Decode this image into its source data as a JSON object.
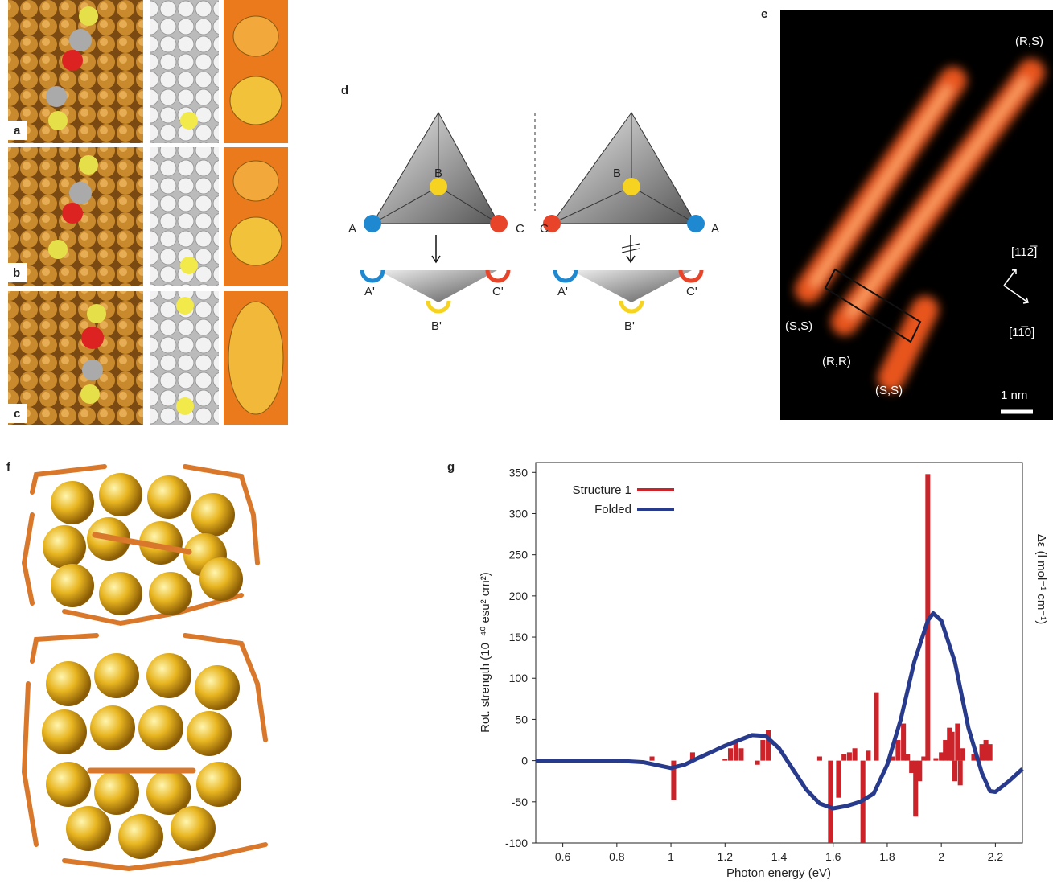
{
  "panels": {
    "labels": [
      "a",
      "b",
      "c",
      "d",
      "e",
      "f",
      "g"
    ],
    "d": {
      "left": [
        "A",
        "B",
        "C",
        "A'",
        "B'",
        "C'"
      ],
      "right": [
        "A",
        "B",
        "C",
        "A'",
        "B'",
        "C'"
      ]
    },
    "e": {
      "strands": [
        "(R,S)",
        "(S,S)",
        "(R,R)",
        "(S,S)"
      ],
      "directions": [
        "[112̅]",
        "[11̅0]"
      ],
      "scale": "1 nm"
    }
  },
  "chart_data": {
    "type": "line",
    "ylabel": "Rot. strength (10⁻⁴⁰ esu² cm²)",
    "y2label": "Δε (l mol⁻¹ cm⁻¹)",
    "xlabel": "Photon energy (eV)",
    "xlim": [
      0.5,
      2.3
    ],
    "xticks": [
      0.6,
      0.8,
      1,
      1.2,
      1.4,
      1.6,
      1.8,
      2,
      2.2
    ],
    "ylim": [
      -100,
      362
    ],
    "yticks": [
      -100,
      -50,
      0,
      50,
      100,
      150,
      200,
      250,
      300,
      350
    ],
    "legend": "upper left",
    "series": [
      {
        "name": "Structure 1",
        "type": "bar",
        "color": "#cc2229",
        "x": [
          0.93,
          1.01,
          1.08,
          1.2,
          1.22,
          1.24,
          1.26,
          1.32,
          1.34,
          1.36,
          1.55,
          1.59,
          1.62,
          1.64,
          1.66,
          1.68,
          1.71,
          1.73,
          1.76,
          1.82,
          1.84,
          1.86,
          1.875,
          1.89,
          1.905,
          1.92,
          1.935,
          1.95,
          1.98,
          2.0,
          2.015,
          2.03,
          2.04,
          2.05,
          2.06,
          2.07,
          2.08,
          2.12,
          2.15,
          2.165,
          2.18
        ],
        "values": [
          5,
          -48,
          10,
          2,
          15,
          25,
          15,
          -5,
          25,
          37,
          5,
          -100,
          -45,
          8,
          10,
          15,
          -100,
          12,
          83,
          5,
          25,
          45,
          8,
          -15,
          -68,
          -25,
          5,
          348,
          3,
          10,
          25,
          40,
          35,
          -25,
          45,
          -30,
          15,
          8,
          20,
          25,
          20
        ]
      },
      {
        "name": "Folded",
        "type": "line",
        "color": "#283a8c",
        "x": [
          0.5,
          0.8,
          0.9,
          1.0,
          1.05,
          1.1,
          1.2,
          1.3,
          1.35,
          1.4,
          1.45,
          1.5,
          1.55,
          1.6,
          1.65,
          1.7,
          1.75,
          1.8,
          1.85,
          1.9,
          1.95,
          1.97,
          2.0,
          2.05,
          2.1,
          2.15,
          2.18,
          2.2,
          2.25,
          2.3
        ],
        "values": [
          0,
          0,
          -2,
          -9,
          -5,
          3,
          18,
          31,
          30,
          15,
          -10,
          -35,
          -52,
          -58,
          -55,
          -50,
          -40,
          -5,
          50,
          120,
          170,
          179,
          170,
          120,
          40,
          -15,
          -37,
          -38,
          -25,
          -10
        ]
      }
    ]
  }
}
